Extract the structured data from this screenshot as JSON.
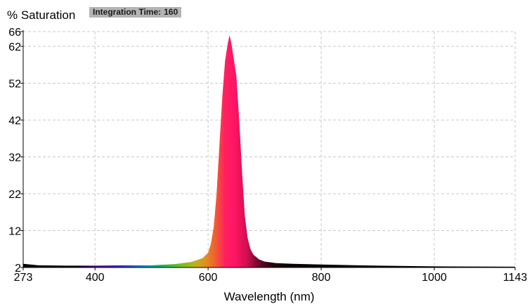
{
  "chart_data": {
    "type": "area",
    "ylabel": "% Saturation",
    "xlabel": "Wavelength (nm)",
    "xlim": [
      273,
      1143
    ],
    "ylim": [
      2,
      66
    ],
    "x_ticks": [
      273,
      400,
      600,
      800,
      1000,
      1143
    ],
    "y_ticks": [
      2,
      12,
      22,
      32,
      42,
      52,
      62,
      66
    ],
    "grid": true,
    "series": [
      {
        "x": [
          273,
          300,
          350,
          400,
          450,
          500,
          540,
          570,
          590,
          600,
          605,
          610,
          615,
          620,
          625,
          630,
          635,
          638,
          641,
          645,
          650,
          655,
          660,
          665,
          670,
          675,
          680,
          690,
          700,
          720,
          750,
          800,
          900,
          1000,
          1143
        ],
        "values": [
          3.0,
          2.6,
          2.5,
          2.5,
          2.6,
          2.6,
          2.9,
          3.5,
          4.5,
          6.0,
          8.5,
          13.0,
          22.0,
          35.0,
          48.0,
          58.0,
          63.0,
          65.0,
          63.0,
          59.0,
          54.0,
          42.0,
          28.0,
          16.0,
          10.0,
          7.0,
          5.5,
          4.2,
          3.6,
          3.2,
          3.0,
          2.8,
          2.5,
          2.3,
          2.2
        ]
      }
    ]
  },
  "header": {
    "saturation_label": "% Saturation",
    "integration_label": "Integration Time:",
    "integration_value": "160"
  }
}
